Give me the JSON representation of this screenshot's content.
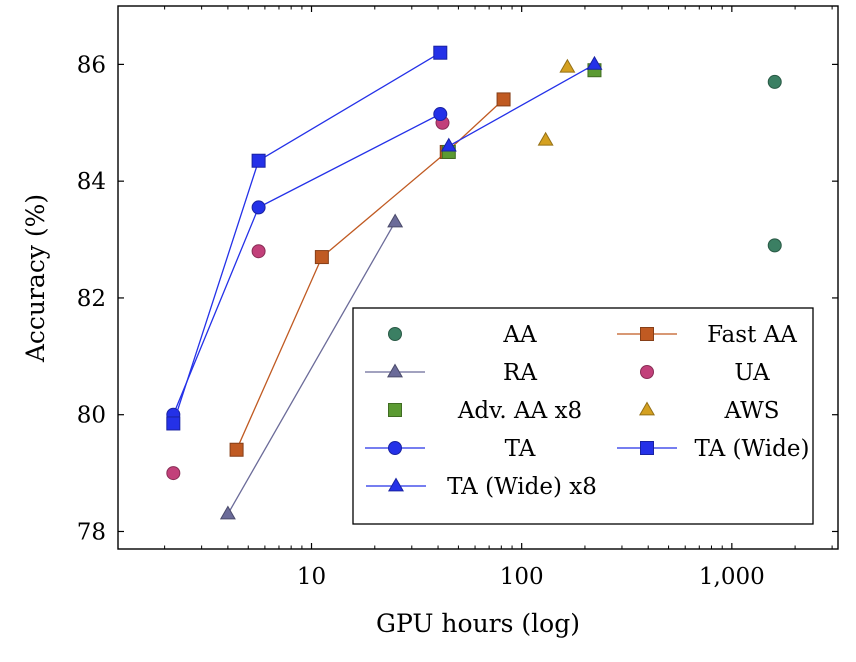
{
  "chart_data": {
    "type": "scatter",
    "xlabel": "GPU hours (log)",
    "ylabel": "Accuracy (%)",
    "xscale": "log",
    "xlim": [
      1.2,
      3200
    ],
    "ylim": [
      77.7,
      87.0
    ],
    "xticks": [
      {
        "value": 10,
        "label": "10"
      },
      {
        "value": 100,
        "label": "100"
      },
      {
        "value": 1000,
        "label": "1,000"
      }
    ],
    "yticks": [
      {
        "value": 78,
        "label": "78"
      },
      {
        "value": 80,
        "label": "80"
      },
      {
        "value": 82,
        "label": "82"
      },
      {
        "value": 84,
        "label": "84"
      },
      {
        "value": 86,
        "label": "86"
      }
    ],
    "grid": false,
    "legend_position": "bottom-right",
    "series": [
      {
        "name": "AA",
        "marker": "circle",
        "color": "#3b7f63",
        "line": false,
        "points": [
          {
            "x": 1600,
            "y": 85.7
          },
          {
            "x": 1600,
            "y": 82.9
          }
        ]
      },
      {
        "name": "Fast AA",
        "marker": "square",
        "color": "#c05a22",
        "line": true,
        "points": [
          {
            "x": 4.4,
            "y": 79.4
          },
          {
            "x": 11.2,
            "y": 82.7
          },
          {
            "x": 44,
            "y": 84.5
          },
          {
            "x": 82,
            "y": 85.4
          }
        ]
      },
      {
        "name": "RA",
        "marker": "triangle",
        "color": "#6b6b99",
        "line": true,
        "points": [
          {
            "x": 4.0,
            "y": 78.3
          },
          {
            "x": 25,
            "y": 83.3
          }
        ]
      },
      {
        "name": "UA",
        "marker": "circle",
        "color": "#c2407a",
        "line": false,
        "points": [
          {
            "x": 2.2,
            "y": 79.0
          },
          {
            "x": 5.6,
            "y": 82.8
          },
          {
            "x": 42,
            "y": 85.0
          }
        ]
      },
      {
        "name": "Adv. AA x8",
        "marker": "square",
        "color": "#5b9a32",
        "line": false,
        "points": [
          {
            "x": 45,
            "y": 84.5
          },
          {
            "x": 222,
            "y": 85.9
          }
        ]
      },
      {
        "name": "AWS",
        "marker": "triangle",
        "color": "#d4a020",
        "line": false,
        "points": [
          {
            "x": 130,
            "y": 84.7
          },
          {
            "x": 165,
            "y": 85.95
          }
        ]
      },
      {
        "name": "TA",
        "marker": "circle",
        "color": "#2431e8",
        "line": true,
        "points": [
          {
            "x": 2.2,
            "y": 80.0
          },
          {
            "x": 5.6,
            "y": 83.55
          },
          {
            "x": 41,
            "y": 85.15
          }
        ]
      },
      {
        "name": "TA (Wide)",
        "marker": "square",
        "color": "#2431e8",
        "line": true,
        "points": [
          {
            "x": 2.2,
            "y": 79.85
          },
          {
            "x": 5.6,
            "y": 84.35
          },
          {
            "x": 41,
            "y": 86.2
          }
        ]
      },
      {
        "name": "TA (Wide) x8",
        "marker": "triangle",
        "color": "#2431e8",
        "line": true,
        "points": [
          {
            "x": 45,
            "y": 84.6
          },
          {
            "x": 222,
            "y": 86.0
          }
        ]
      }
    ]
  }
}
